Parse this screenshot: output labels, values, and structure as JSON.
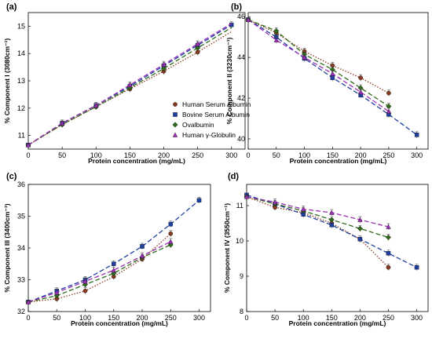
{
  "series_styles": [
    {
      "name": "Human Serum Albumin",
      "color": "#8b3a1f",
      "marker": "circle",
      "dash": "1.5,2"
    },
    {
      "name": "Bovine Serum Albumin",
      "color": "#1f3fa0",
      "marker": "square",
      "dash": "6,3"
    },
    {
      "name": "Ovalbumin",
      "color": "#2e6b1a",
      "marker": "diamond",
      "dash": "6,3"
    },
    {
      "name": "Human γ-Globulin",
      "color": "#9b2fb5",
      "marker": "triangle",
      "dash": "6,3"
    }
  ],
  "chart_data": [
    {
      "panel": "(a)",
      "type": "line",
      "legend_position": "right-middle",
      "xlabel": "Protein concentration (mg/mL)",
      "ylabel": "% Component I (3080cm⁻¹)",
      "xlim": [
        0,
        320
      ],
      "ylim": [
        10.5,
        15.5
      ],
      "xticks": [
        "0",
        "50",
        "100",
        "150",
        "200",
        "250",
        "300"
      ],
      "yticks": [
        "11",
        "12",
        "13",
        "14",
        "15"
      ],
      "legend": [
        "Human Serum Albumin",
        "Bovine Serum Albumin",
        "Ovalbumin",
        "Human γ-Globulin"
      ],
      "series": [
        {
          "name": "Human Serum Albumin",
          "x": [
            0,
            50,
            100,
            150,
            200,
            250
          ],
          "y": [
            10.65,
            11.4,
            12.05,
            12.7,
            13.35,
            14.05
          ]
        },
        {
          "name": "Bovine Serum Albumin",
          "x": [
            0,
            50,
            100,
            150,
            200,
            250,
            300
          ],
          "y": [
            10.65,
            11.45,
            12.1,
            12.8,
            13.55,
            14.3,
            15.05
          ]
        },
        {
          "name": "Ovalbumin",
          "x": [
            0,
            50,
            100,
            150,
            200,
            250
          ],
          "y": [
            10.65,
            11.4,
            12.05,
            12.75,
            13.45,
            14.2
          ]
        },
        {
          "name": "Human γ-Globulin",
          "x": [
            0,
            50,
            100,
            150,
            200,
            250
          ],
          "y": [
            10.65,
            11.45,
            12.1,
            12.85,
            13.6,
            14.35
          ]
        }
      ],
      "fit_end": {
        "Human Serum Albumin": [
          300,
          14.8
        ],
        "Ovalbumin": [
          300,
          14.95
        ],
        "Human γ-Globulin": [
          300,
          15.1
        ]
      }
    },
    {
      "panel": "(b)",
      "type": "line",
      "xlabel": "Protein concentration (mg/mL)",
      "ylabel": "% Component II (3230cm⁻¹)",
      "xlim": [
        0,
        320
      ],
      "ylim": [
        39.5,
        46.2
      ],
      "xticks": [
        "0",
        "50",
        "100",
        "150",
        "200",
        "250",
        "300"
      ],
      "yticks": [
        "40",
        "42",
        "44",
        "46"
      ],
      "series": [
        {
          "name": "Human Serum Albumin",
          "x": [
            0,
            50,
            100,
            150,
            200,
            250
          ],
          "y": [
            45.85,
            45.2,
            44.3,
            43.6,
            43.0,
            42.25
          ]
        },
        {
          "name": "Bovine Serum Albumin",
          "x": [
            0,
            50,
            100,
            150,
            200,
            250,
            300
          ],
          "y": [
            45.85,
            45.0,
            43.95,
            43.0,
            42.15,
            41.2,
            40.2
          ]
        },
        {
          "name": "Ovalbumin",
          "x": [
            0,
            50,
            100,
            150,
            200,
            250
          ],
          "y": [
            45.85,
            45.3,
            44.15,
            43.4,
            42.5,
            41.6
          ]
        },
        {
          "name": "Human γ-Globulin",
          "x": [
            0,
            50,
            100,
            150,
            200,
            250
          ],
          "y": [
            45.85,
            44.85,
            44.0,
            43.2,
            42.3,
            41.35
          ]
        }
      ]
    },
    {
      "panel": "(c)",
      "type": "line",
      "xlabel": "Protein concentration (mg/mL)",
      "ylabel": "% Component III (3400cm⁻¹)",
      "xlim": [
        0,
        320
      ],
      "ylim": [
        32,
        36
      ],
      "xticks": [
        "0",
        "50",
        "100",
        "150",
        "200",
        "250",
        "300"
      ],
      "yticks": [
        "32",
        "33",
        "34",
        "35",
        "36"
      ],
      "series": [
        {
          "name": "Human Serum Albumin",
          "x": [
            0,
            50,
            100,
            150,
            200,
            250
          ],
          "y": [
            32.3,
            32.4,
            32.65,
            33.1,
            33.65,
            34.45
          ]
        },
        {
          "name": "Bovine Serum Albumin",
          "x": [
            0,
            50,
            100,
            150,
            200,
            250,
            300
          ],
          "y": [
            32.3,
            32.65,
            33.0,
            33.5,
            34.05,
            34.75,
            35.5
          ]
        },
        {
          "name": "Ovalbumin",
          "x": [
            0,
            50,
            100,
            150,
            200,
            250
          ],
          "y": [
            32.3,
            32.5,
            32.85,
            33.2,
            33.7,
            34.1
          ]
        },
        {
          "name": "Human γ-Globulin",
          "x": [
            0,
            50,
            100,
            150,
            200,
            250
          ],
          "y": [
            32.3,
            32.6,
            32.95,
            33.3,
            33.75,
            34.2
          ]
        }
      ]
    },
    {
      "panel": "(d)",
      "type": "line",
      "xlabel": "Protein concentration (mg/mL)",
      "ylabel": "% Component IV (3550cm⁻¹)",
      "xlim": [
        0,
        320
      ],
      "ylim": [
        8,
        11.6
      ],
      "xticks": [
        "0",
        "50",
        "100",
        "150",
        "200",
        "250",
        "300"
      ],
      "yticks": [
        "8",
        "9",
        "10",
        "11"
      ],
      "series": [
        {
          "name": "Human Serum Albumin",
          "x": [
            0,
            50,
            100,
            150,
            200,
            250
          ],
          "y": [
            11.25,
            10.95,
            10.8,
            10.5,
            10.05,
            9.25
          ]
        },
        {
          "name": "Bovine Serum Albumin",
          "x": [
            0,
            50,
            100,
            150,
            200,
            250,
            300
          ],
          "y": [
            11.3,
            11.05,
            10.75,
            10.45,
            10.05,
            9.65,
            9.25
          ]
        },
        {
          "name": "Ovalbumin",
          "x": [
            0,
            50,
            100,
            150,
            200,
            250
          ],
          "y": [
            11.25,
            11.05,
            10.85,
            10.6,
            10.35,
            10.1
          ]
        },
        {
          "name": "Human γ-Globulin",
          "x": [
            0,
            50,
            100,
            150,
            200,
            250
          ],
          "y": [
            11.25,
            11.1,
            10.9,
            10.8,
            10.6,
            10.4
          ]
        }
      ]
    }
  ]
}
